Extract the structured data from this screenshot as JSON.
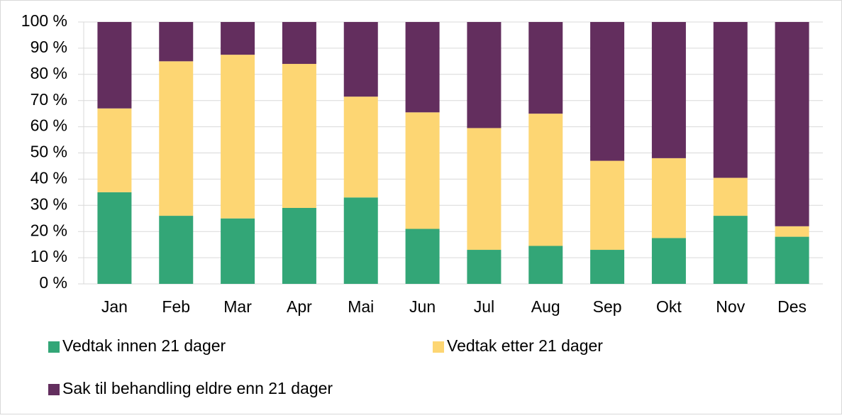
{
  "chart_data": {
    "type": "bar",
    "stacked": true,
    "categories": [
      "Jan",
      "Feb",
      "Mar",
      "Apr",
      "Mai",
      "Jun",
      "Jul",
      "Aug",
      "Sep",
      "Okt",
      "Nov",
      "Des"
    ],
    "series": [
      {
        "name": "Vedtak innen 21 dager",
        "color": "#33a677",
        "values": [
          35,
          26,
          25,
          29,
          33,
          21,
          13,
          14.5,
          13,
          17.5,
          26,
          18
        ]
      },
      {
        "name": "Vedtak etter 21 dager",
        "color": "#fdd673",
        "values": [
          32,
          59,
          62.5,
          55,
          38.5,
          44.5,
          46.5,
          50.5,
          34,
          30.5,
          14.5,
          4
        ]
      },
      {
        "name": "Sak til behandling eldre enn 21 dager",
        "color": "#632e5e",
        "values": [
          33,
          15,
          12.5,
          16,
          28.5,
          34.5,
          40.5,
          35,
          53,
          52,
          59.5,
          78
        ]
      }
    ],
    "ylim": [
      0,
      100
    ],
    "yticks": [
      {
        "value": 0,
        "label": "0 %"
      },
      {
        "value": 10,
        "label": "10 %"
      },
      {
        "value": 20,
        "label": "20 %"
      },
      {
        "value": 30,
        "label": "30 %"
      },
      {
        "value": 40,
        "label": "40 %"
      },
      {
        "value": 50,
        "label": "50 %"
      },
      {
        "value": 60,
        "label": "60 %"
      },
      {
        "value": 70,
        "label": "70 %"
      },
      {
        "value": 80,
        "label": "80 %"
      },
      {
        "value": 90,
        "label": "90 %"
      },
      {
        "value": 100,
        "label": "100 %"
      }
    ],
    "grid": true,
    "legend": "bottom"
  }
}
